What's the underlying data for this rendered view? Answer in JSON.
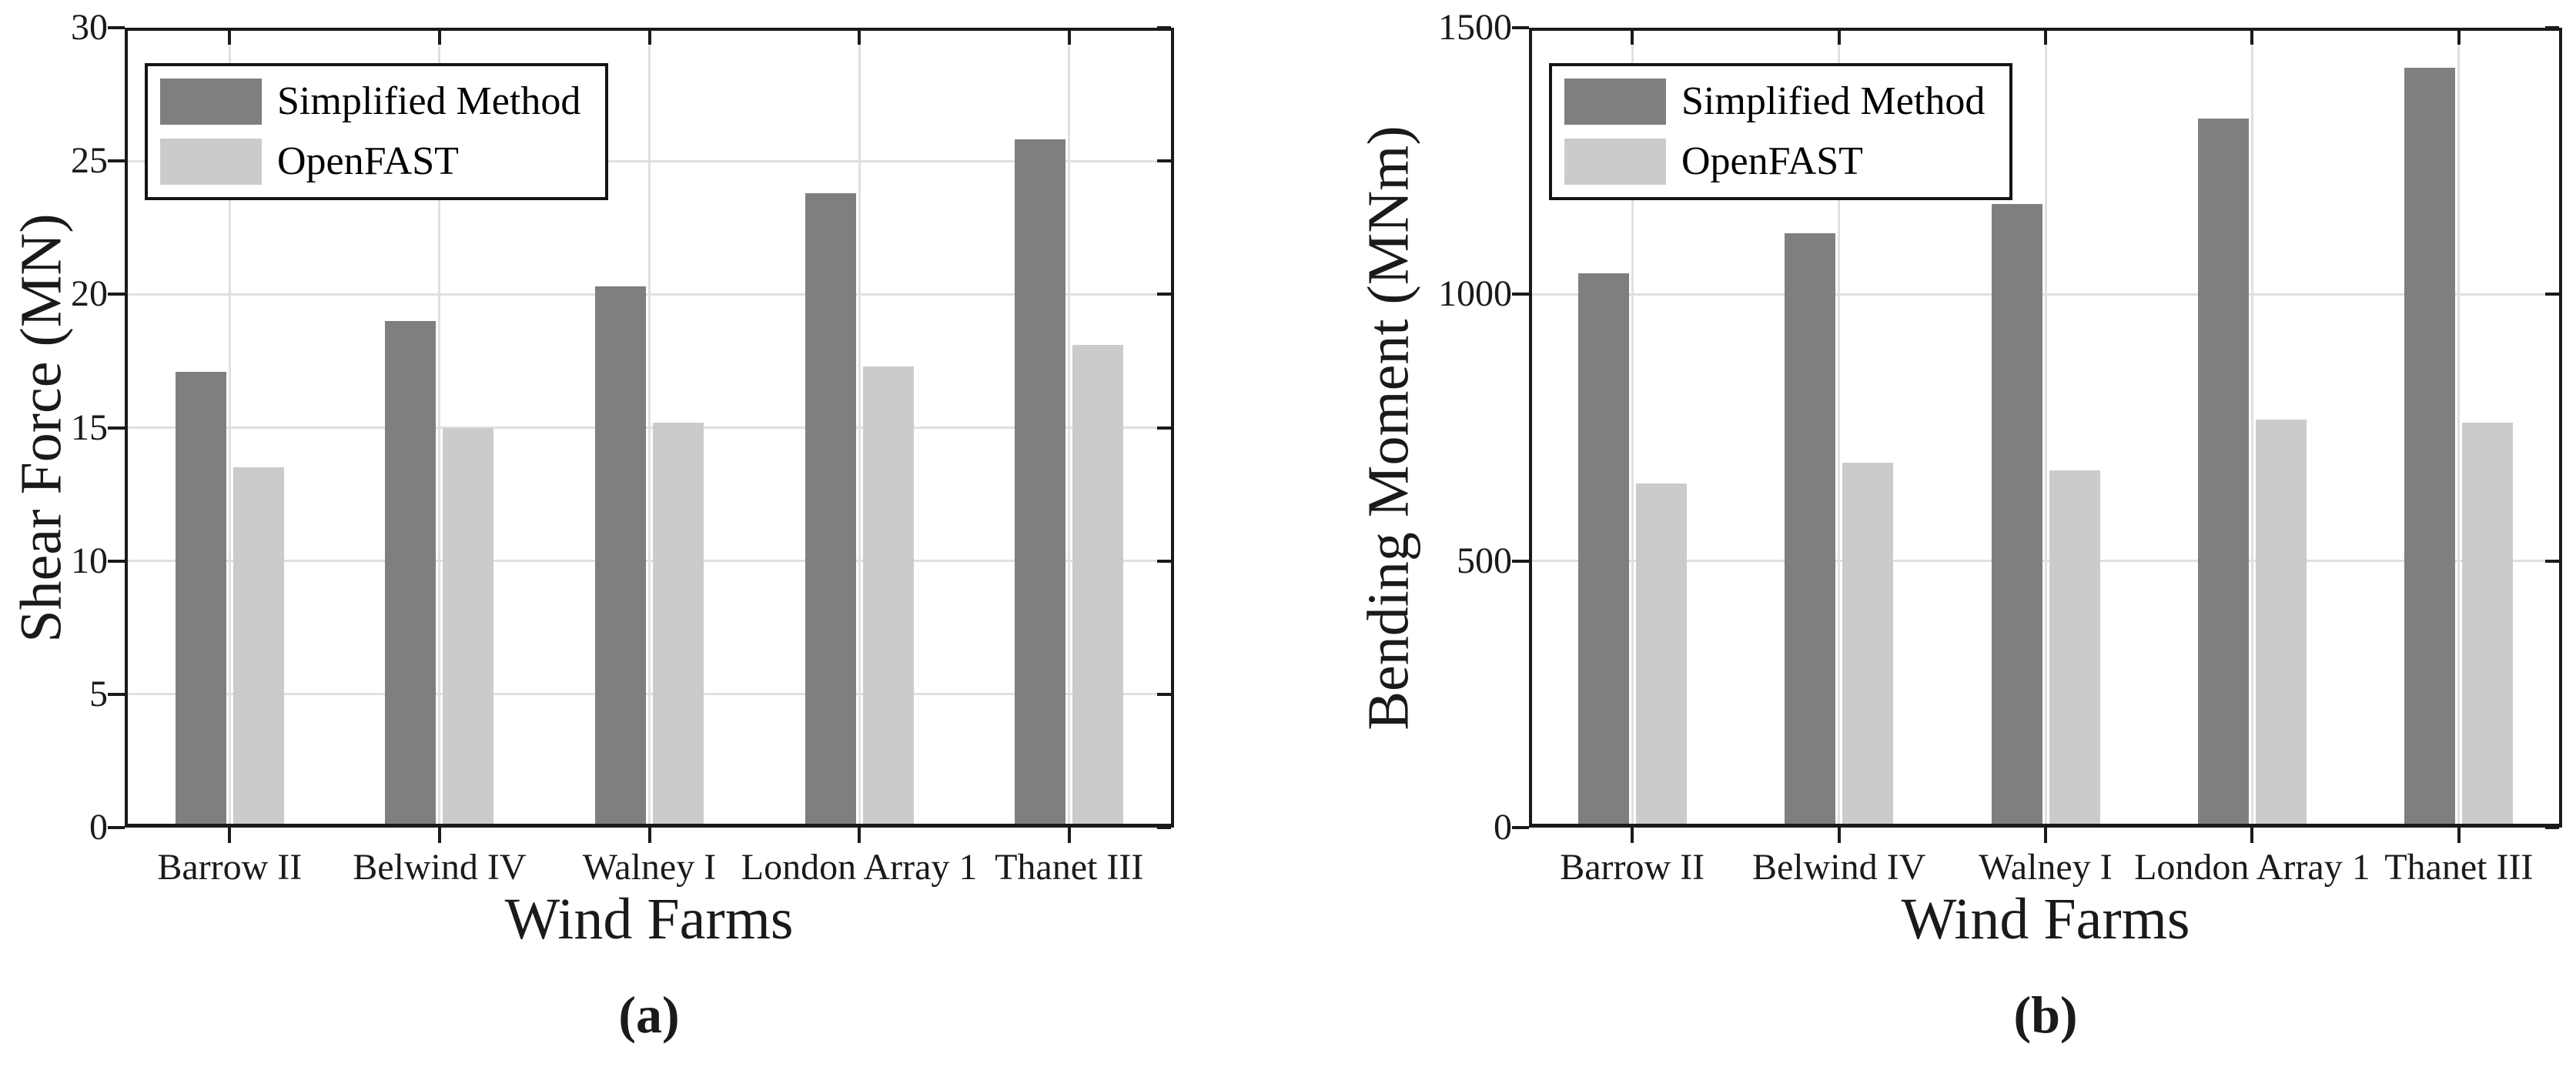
{
  "figure": {
    "background": "#ffffff"
  },
  "colors": {
    "axis": "#1a1a1a",
    "grid": "#e0e0e0",
    "text": "#1a1a1a",
    "legend_border": "#141414",
    "legend_background": "#ffffff",
    "series_dark": "#7f7f7f",
    "series_light": "#cbcbcb"
  },
  "chart_data": [
    {
      "type": "bar",
      "caption": "(a)",
      "ylabel": "Shear Force (MN)",
      "xlabel": "Wind Farms",
      "ylim": [
        0,
        30
      ],
      "yticks": [
        0,
        5,
        10,
        15,
        20,
        25,
        30
      ],
      "grid": true,
      "legend_position": "top-left",
      "categories": [
        "Barrow II",
        "Belwind IV",
        "Walney I",
        "London Array 1",
        "Thanet III"
      ],
      "series": [
        {
          "name": "Simplified Method",
          "color": "#7f7f7f",
          "values": [
            17.1,
            19.0,
            20.3,
            23.8,
            25.8
          ]
        },
        {
          "name": "OpenFAST",
          "color": "#cbcbcb",
          "values": [
            13.5,
            15.0,
            15.2,
            17.3,
            18.1
          ]
        }
      ]
    },
    {
      "type": "bar",
      "caption": "(b)",
      "ylabel": "Bending Moment (MNm)",
      "xlabel": "Wind Farms",
      "ylim": [
        0,
        1500
      ],
      "yticks": [
        0,
        500,
        1000,
        1500
      ],
      "grid": true,
      "legend_position": "top-left",
      "categories": [
        "Barrow II",
        "Belwind IV",
        "Walney I",
        "London Array 1",
        "Thanet III"
      ],
      "series": [
        {
          "name": "Simplified Method",
          "color": "#7f7f7f",
          "values": [
            1040,
            1115,
            1170,
            1330,
            1425
          ]
        },
        {
          "name": "OpenFAST",
          "color": "#cbcbcb",
          "values": [
            645,
            685,
            670,
            765,
            760
          ]
        }
      ]
    }
  ]
}
